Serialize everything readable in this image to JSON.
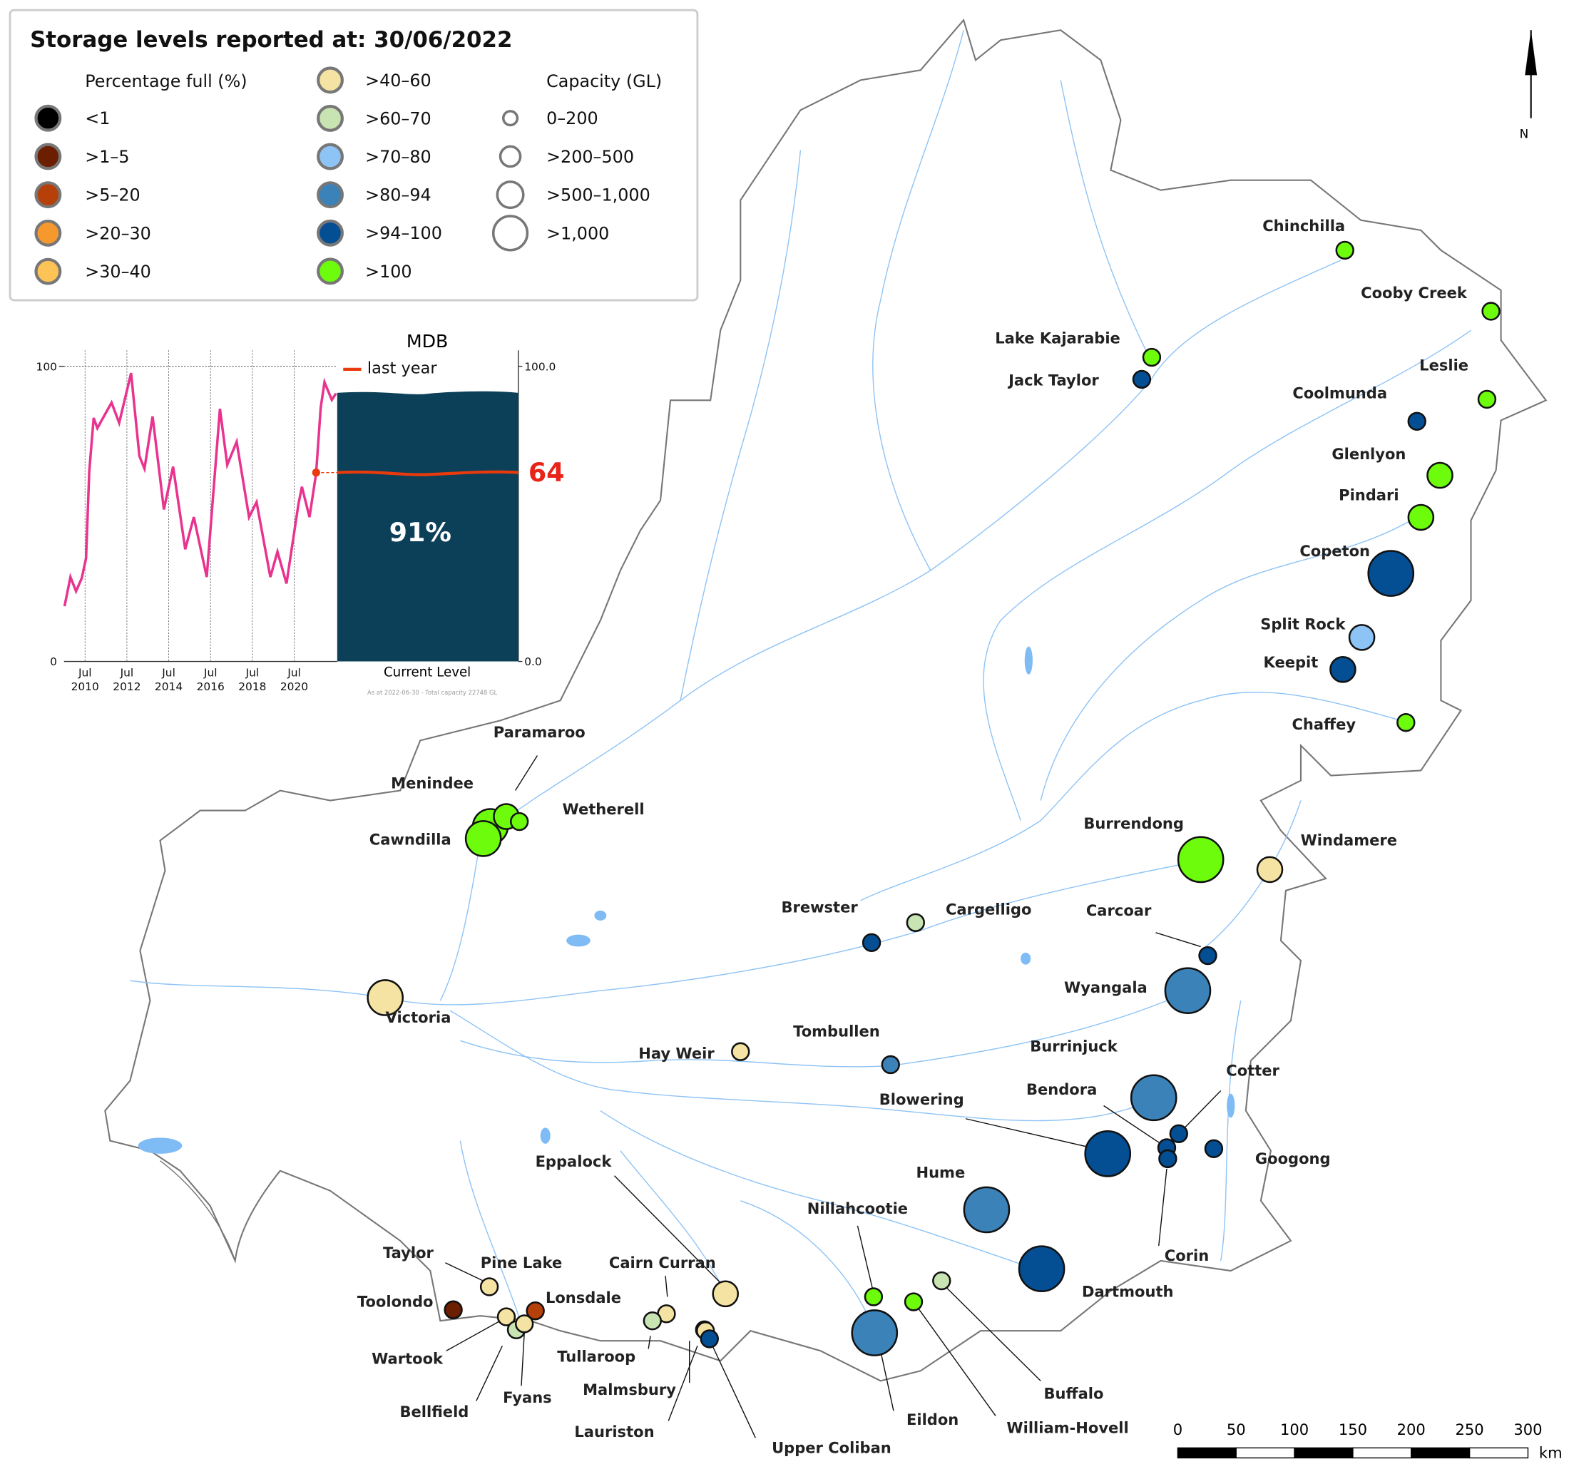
{
  "legend": {
    "title": "Storage levels reported at: 30/06/2022",
    "percent_header": "Percentage full (%)",
    "capacity_header": "Capacity (GL)",
    "percent_classes": [
      {
        "label": "<1",
        "color": "#000000"
      },
      {
        "label": ">1–5",
        "color": "#6b1f00"
      },
      {
        "label": ">5–20",
        "color": "#b5400a"
      },
      {
        "label": ">20–30",
        "color": "#f5992e"
      },
      {
        "label": ">30–40",
        "color": "#fdc357"
      },
      {
        "label": ">40–60",
        "color": "#f5e3a3"
      },
      {
        "label": ">60–70",
        "color": "#c9e4b3"
      },
      {
        "label": ">70–80",
        "color": "#8ec3f5"
      },
      {
        "label": ">80–94",
        "color": "#3a82b8"
      },
      {
        "label": ">94–100",
        "color": "#044e93"
      },
      {
        "label": ">100",
        "color": "#6cfc0c"
      }
    ],
    "capacity_classes": [
      "0–200",
      ">200–500",
      ">500–1,000",
      ">1,000"
    ]
  },
  "north_label": "N",
  "scale_bar": {
    "ticks": [
      "0",
      "50",
      "100",
      "150",
      "200",
      "250",
      "300"
    ],
    "unit": "km"
  },
  "inset": {
    "title": "MDB",
    "legend_label": "last year",
    "current_level_label": "Current Level",
    "current_percent": 91,
    "current_text": "91%",
    "last_year_value": 64,
    "last_year_text": "64",
    "footnote": "As at 2022-06-30 - Total capacity 22748 GL",
    "y_left_ticks": [
      "0",
      "100"
    ],
    "y_right_ticks": [
      "0.0",
      "100.0"
    ],
    "x_ticks": [
      {
        "month": "Jul",
        "year": "2010"
      },
      {
        "month": "Jul",
        "year": "2012"
      },
      {
        "month": "Jul",
        "year": "2014"
      },
      {
        "month": "Jul",
        "year": "2016"
      },
      {
        "month": "Jul",
        "year": "2018"
      },
      {
        "month": "Jul",
        "year": "2020"
      }
    ],
    "series_color": "#e8338f",
    "bar_color": "#0b4058",
    "last_year_color": "#e83a0c",
    "series": [
      [
        2009.52,
        18.7
      ],
      [
        2009.8,
        28.6
      ],
      [
        2010.07,
        23.8
      ],
      [
        2010.34,
        28.2
      ],
      [
        2010.55,
        35
      ],
      [
        2010.7,
        64.4
      ],
      [
        2010.91,
        82.5
      ],
      [
        2011.09,
        79
      ],
      [
        2011.32,
        82
      ],
      [
        2011.77,
        87.7
      ],
      [
        2012.13,
        80.8
      ],
      [
        2012.7,
        97.7
      ],
      [
        2013.1,
        69.6
      ],
      [
        2013.34,
        65.3
      ],
      [
        2013.73,
        83
      ],
      [
        2014.27,
        51.5
      ],
      [
        2014.71,
        66
      ],
      [
        2015.29,
        38
      ],
      [
        2015.7,
        48.9
      ],
      [
        2016.32,
        28.6
      ],
      [
        2016.95,
        85.6
      ],
      [
        2017.3,
        66.6
      ],
      [
        2017.75,
        74.4
      ],
      [
        2018.34,
        48.9
      ],
      [
        2018.7,
        54
      ],
      [
        2019.36,
        28.6
      ],
      [
        2019.7,
        37.2
      ],
      [
        2020.13,
        26.4
      ],
      [
        2020.7,
        53.2
      ],
      [
        2020.87,
        59.2
      ],
      [
        2021.23,
        48.9
      ],
      [
        2021.55,
        63.7
      ],
      [
        2021.77,
        86
      ],
      [
        2021.95,
        94.6
      ],
      [
        2022.3,
        88.6
      ],
      [
        2022.5,
        90.8
      ]
    ]
  },
  "storages": [
    {
      "name": "Chinchilla",
      "pct": 10,
      "cap": 0
    },
    {
      "name": "Cooby Creek",
      "pct": 10,
      "cap": 0
    },
    {
      "name": "Lake Kajarabie",
      "pct": 10,
      "cap": 0
    },
    {
      "name": "Jack Taylor",
      "pct": 9,
      "cap": 0
    },
    {
      "name": "Leslie",
      "pct": 10,
      "cap": 0
    },
    {
      "name": "Coolmunda",
      "pct": 9,
      "cap": 0
    },
    {
      "name": "Glenlyon",
      "pct": 10,
      "cap": 1
    },
    {
      "name": "Pindari",
      "pct": 10,
      "cap": 1
    },
    {
      "name": "Copeton",
      "pct": 9,
      "cap": 3
    },
    {
      "name": "Split Rock",
      "pct": 7,
      "cap": 1
    },
    {
      "name": "Keepit",
      "pct": 9,
      "cap": 1
    },
    {
      "name": "Chaffey",
      "pct": 10,
      "cap": 0
    },
    {
      "name": "Menindee",
      "pct": 10,
      "cap": 2
    },
    {
      "name": "Cawndilla",
      "pct": 10,
      "cap": 2
    },
    {
      "name": "Paramaroo",
      "pct": 10,
      "cap": 1
    },
    {
      "name": "Wetherell",
      "pct": 10,
      "cap": 0
    },
    {
      "name": "Burrendong",
      "pct": 10,
      "cap": 3
    },
    {
      "name": "Windamere",
      "pct": 5,
      "cap": 1
    },
    {
      "name": "Brewster",
      "pct": 9,
      "cap": 0
    },
    {
      "name": "Cargelligo",
      "pct": 6,
      "cap": 0
    },
    {
      "name": "Carcoar",
      "pct": 9,
      "cap": 0
    },
    {
      "name": "Wyangala",
      "pct": 8,
      "cap": 3
    },
    {
      "name": "Victoria",
      "pct": 5,
      "cap": 2
    },
    {
      "name": "Tombullen",
      "pct": 8,
      "cap": 0
    },
    {
      "name": "Hay Weir",
      "pct": 5,
      "cap": 0
    },
    {
      "name": "Burrinjuck",
      "pct": 8,
      "cap": 3
    },
    {
      "name": "Cotter",
      "pct": 9,
      "cap": 0
    },
    {
      "name": "Bendora",
      "pct": 9,
      "cap": 0
    },
    {
      "name": "Corin",
      "pct": 9,
      "cap": 0
    },
    {
      "name": "Googong",
      "pct": 9,
      "cap": 0
    },
    {
      "name": "Blowering",
      "pct": 9,
      "cap": 3
    },
    {
      "name": "Hume",
      "pct": 8,
      "cap": 3
    },
    {
      "name": "Dartmouth",
      "pct": 9,
      "cap": 3
    },
    {
      "name": "Eildon",
      "pct": 8,
      "cap": 3
    },
    {
      "name": "Nillahcootie",
      "pct": 10,
      "cap": 0
    },
    {
      "name": "William-Hovell",
      "pct": 10,
      "cap": 0
    },
    {
      "name": "Buffalo",
      "pct": 6,
      "cap": 0
    },
    {
      "name": "Eppalock",
      "pct": 5,
      "cap": 1
    },
    {
      "name": "Cairn Curran",
      "pct": 5,
      "cap": 0
    },
    {
      "name": "Tullaroop",
      "pct": 6,
      "cap": 0
    },
    {
      "name": "Lauriston",
      "pct": 5,
      "cap": 0
    },
    {
      "name": "Malmsbury",
      "pct": 5,
      "cap": 0
    },
    {
      "name": "Upper Coliban",
      "pct": 9,
      "cap": 0
    },
    {
      "name": "Taylor",
      "pct": 5,
      "cap": 0
    },
    {
      "name": "Pine Lake",
      "pct": 5,
      "cap": 0
    },
    {
      "name": "Toolondo",
      "pct": 1,
      "cap": 0
    },
    {
      "name": "Lonsdale",
      "pct": 2,
      "cap": 0
    },
    {
      "name": "Wartook",
      "pct": 5,
      "cap": 0
    },
    {
      "name": "Bellfield",
      "pct": 6,
      "cap": 0
    },
    {
      "name": "Fyans",
      "pct": 5,
      "cap": 0
    }
  ]
}
